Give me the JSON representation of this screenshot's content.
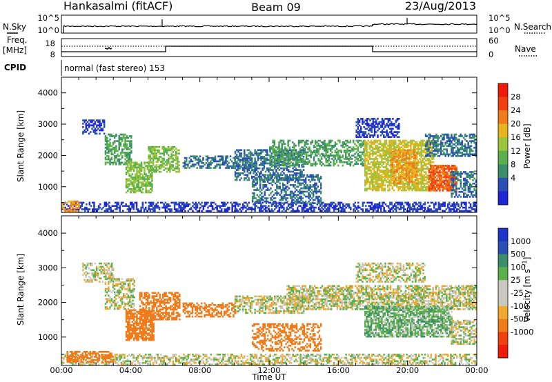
{
  "header": {
    "station": "Hankasalmi (fitACF)",
    "beam": "Beam 09",
    "date": "23/Aug/2013"
  },
  "panels": {
    "nsky": {
      "left_label": "N.Sky",
      "right_label": "N.Search",
      "ticks_left": [
        "10^5",
        "10^0"
      ],
      "ticks_right": [
        "10^5",
        "10^0"
      ]
    },
    "freq": {
      "left_label_1": "Freq.",
      "left_label_2": "[MHz]",
      "right_label": "Nave",
      "ticks_left": [
        "18",
        "8"
      ],
      "ticks_right": [
        "60",
        "0"
      ]
    },
    "cpid": {
      "label": "CPID",
      "text": "normal (fast stereo) 153"
    }
  },
  "colors": {
    "power": [
      "#1e26d8",
      "#2a4fb5",
      "#3a8f6a",
      "#5ab04a",
      "#9bc43a",
      "#e8b41e",
      "#ef7b1a",
      "#f04010",
      "#ee1a0a"
    ],
    "velocity": [
      "#ee1a0a",
      "#f04010",
      "#ef7b1a",
      "#f0a830",
      "#c8c8c0",
      "#c8c8c0",
      "#5ab04a",
      "#3a8f6a",
      "#2a4fb5",
      "#1e36c8"
    ]
  },
  "chart_data": [
    {
      "type": "heatmap",
      "title": "Power",
      "xlabel": "",
      "ylabel": "Slant Range [km]",
      "colorbar_label": "Power [dB]",
      "colorbar_ticks": [
        "4",
        "8",
        "12",
        "16",
        "20",
        "24",
        "28"
      ],
      "xlim": [
        0,
        24
      ],
      "ylim": [
        180,
        4500
      ],
      "x_ticks": [
        "00:00",
        "04:00",
        "08:00",
        "12:00",
        "16:00",
        "20:00",
        "00:00"
      ],
      "y_ticks": [
        "1000",
        "2000",
        "3000",
        "4000"
      ],
      "regions": [
        {
          "x": [
            0.0,
            24.0
          ],
          "y": [
            200,
            520
          ],
          "value": 4,
          "density": 0.55
        },
        {
          "x": [
            0.0,
            1.0
          ],
          "y": [
            220,
            560
          ],
          "value": 24,
          "density": 0.6
        },
        {
          "x": [
            1.2,
            2.5
          ],
          "y": [
            2700,
            3150
          ],
          "value": 4,
          "density": 0.6
        },
        {
          "x": [
            2.5,
            4.0
          ],
          "y": [
            1700,
            2700
          ],
          "value": 12,
          "density": 0.55
        },
        {
          "x": [
            3.7,
            5.2
          ],
          "y": [
            800,
            1800
          ],
          "value": 16,
          "density": 0.7
        },
        {
          "x": [
            5.0,
            6.8
          ],
          "y": [
            1500,
            2300
          ],
          "value": 16,
          "density": 0.6
        },
        {
          "x": [
            7.0,
            11.0
          ],
          "y": [
            1600,
            2000
          ],
          "value": 8,
          "density": 0.55
        },
        {
          "x": [
            10.0,
            14.0
          ],
          "y": [
            1200,
            2200
          ],
          "value": 8,
          "density": 0.55
        },
        {
          "x": [
            11.0,
            15.0
          ],
          "y": [
            500,
            1400
          ],
          "value": 8,
          "density": 0.5
        },
        {
          "x": [
            12.0,
            17.5
          ],
          "y": [
            1700,
            2500
          ],
          "value": 12,
          "density": 0.55
        },
        {
          "x": [
            17.0,
            19.5
          ],
          "y": [
            2600,
            3200
          ],
          "value": 4,
          "density": 0.55
        },
        {
          "x": [
            17.5,
            21.5
          ],
          "y": [
            900,
            2500
          ],
          "value": 20,
          "density": 0.7
        },
        {
          "x": [
            19.0,
            20.5
          ],
          "y": [
            1100,
            2200
          ],
          "value": 24,
          "density": 0.6
        },
        {
          "x": [
            21.2,
            22.8
          ],
          "y": [
            900,
            1700
          ],
          "value": 28,
          "density": 0.8
        },
        {
          "x": [
            21.0,
            24.0
          ],
          "y": [
            2000,
            2700
          ],
          "value": 8,
          "density": 0.6
        },
        {
          "x": [
            22.5,
            24.0
          ],
          "y": [
            700,
            1500
          ],
          "value": 8,
          "density": 0.55
        }
      ]
    },
    {
      "type": "heatmap",
      "title": "Velocity",
      "xlabel": "Time UT",
      "ylabel": "Slant Range [km]",
      "colorbar_label": "Velocity [m s^-1]",
      "colorbar_ticks": [
        "1000",
        "500",
        "100",
        "25",
        "-25",
        "-100",
        "-500",
        "-1000"
      ],
      "xlim": [
        0,
        24
      ],
      "ylim": [
        180,
        4500
      ],
      "x_ticks": [
        "00:00",
        "04:00",
        "08:00",
        "12:00",
        "16:00",
        "20:00",
        "00:00"
      ],
      "y_ticks": [
        "1000",
        "2000",
        "3000",
        "4000"
      ],
      "regions": [
        {
          "x": [
            0.0,
            24.0
          ],
          "y": [
            200,
            520
          ],
          "value": 0,
          "density": 0.5
        },
        {
          "x": [
            0.3,
            3.0
          ],
          "y": [
            300,
            600
          ],
          "value": -300,
          "density": 0.6
        },
        {
          "x": [
            1.2,
            3.0
          ],
          "y": [
            2600,
            3150
          ],
          "value": 0,
          "density": 0.5
        },
        {
          "x": [
            2.5,
            4.2
          ],
          "y": [
            1800,
            2700
          ],
          "value": 0,
          "density": 0.5
        },
        {
          "x": [
            3.7,
            5.3
          ],
          "y": [
            900,
            1800
          ],
          "value": -300,
          "density": 0.75
        },
        {
          "x": [
            4.5,
            6.8
          ],
          "y": [
            1500,
            2300
          ],
          "value": -300,
          "density": 0.6
        },
        {
          "x": [
            7.0,
            10.0
          ],
          "y": [
            1600,
            2000
          ],
          "value": -300,
          "density": 0.5
        },
        {
          "x": [
            10.0,
            14.0
          ],
          "y": [
            1700,
            2200
          ],
          "value": 0,
          "density": 0.55
        },
        {
          "x": [
            11.0,
            15.0
          ],
          "y": [
            600,
            1400
          ],
          "value": -300,
          "density": 0.45
        },
        {
          "x": [
            13.0,
            24.0
          ],
          "y": [
            1800,
            2500
          ],
          "value": 0,
          "density": 0.65
        },
        {
          "x": [
            17.0,
            21.0
          ],
          "y": [
            2600,
            3150
          ],
          "value": 0,
          "density": 0.5
        },
        {
          "x": [
            17.5,
            22.5
          ],
          "y": [
            1000,
            1900
          ],
          "value": 60,
          "density": 0.75
        },
        {
          "x": [
            22.5,
            24.0
          ],
          "y": [
            800,
            1500
          ],
          "value": 0,
          "density": 0.6
        }
      ]
    }
  ]
}
